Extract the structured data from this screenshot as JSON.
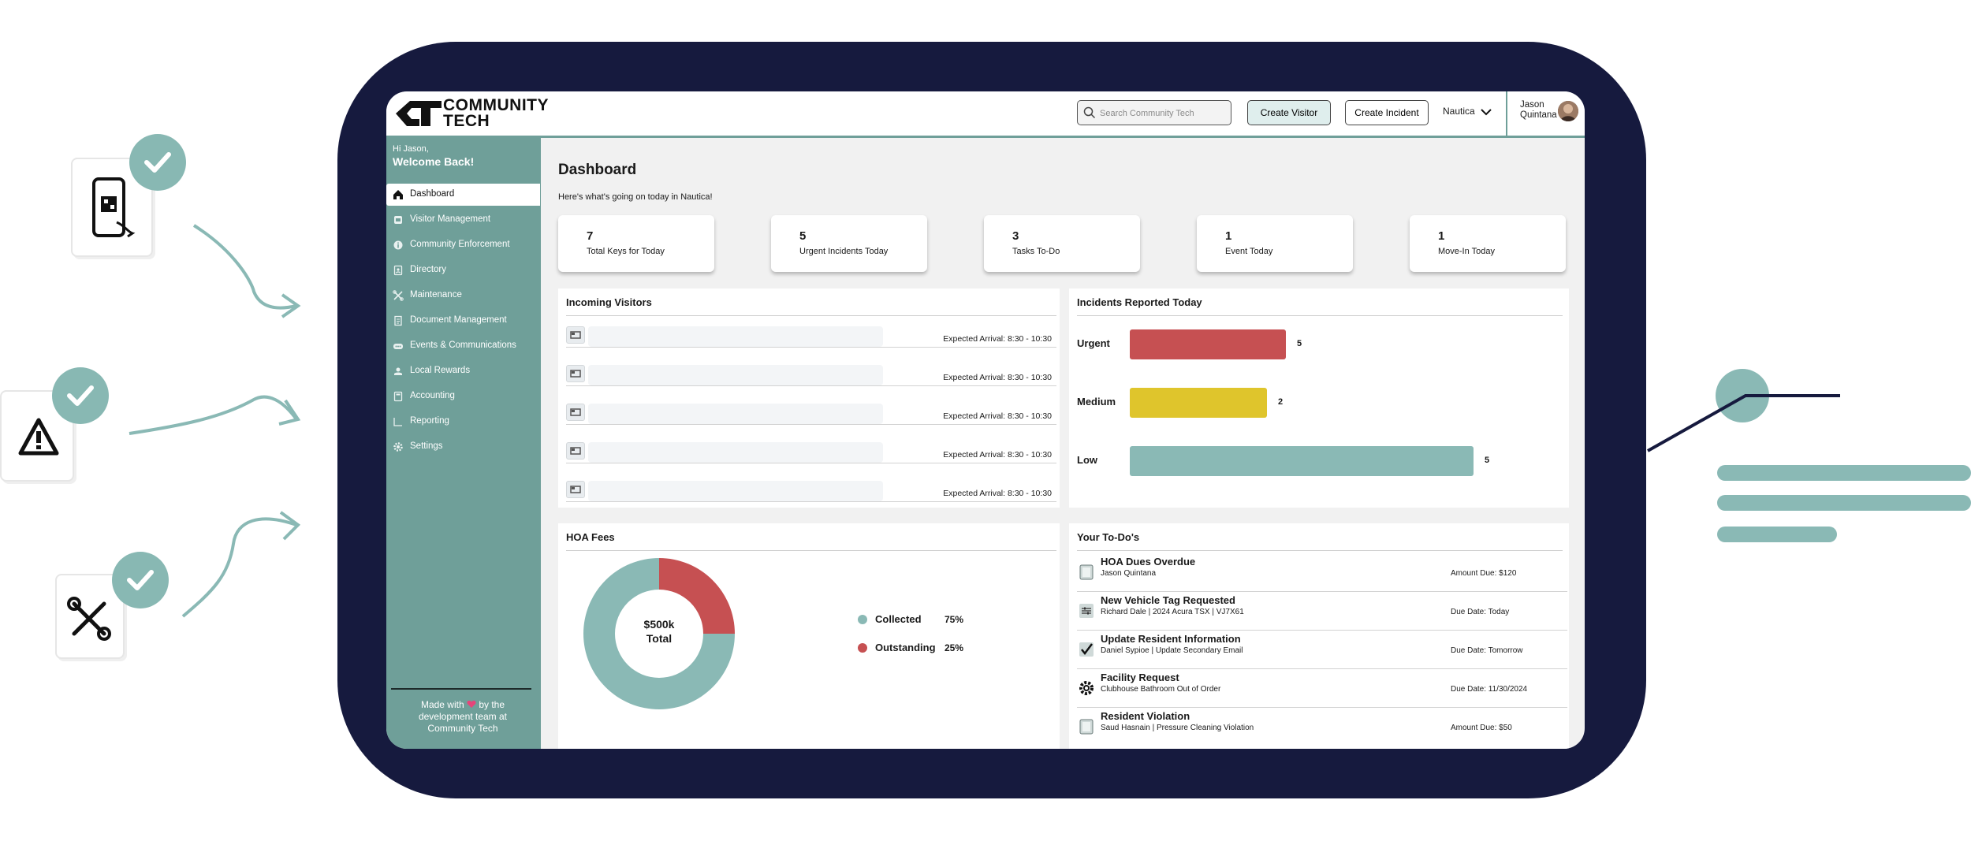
{
  "brand": {
    "logo_line1": "COMMUNITY",
    "logo_line2": "TECH"
  },
  "header": {
    "search_placeholder": "Search Community Tech",
    "create_visitor": "Create Visitor",
    "create_incident": "Create Incident",
    "community": "Nautica",
    "user_first": "Jason",
    "user_last": "Quintana"
  },
  "sidebar": {
    "greeting": "Hi Jason,",
    "welcome": "Welcome Back!",
    "items": [
      {
        "label": "Dashboard",
        "icon": "home-icon"
      },
      {
        "label": "Visitor Management",
        "icon": "visitor-icon"
      },
      {
        "label": "Community Enforcement",
        "icon": "info-icon"
      },
      {
        "label": "Directory",
        "icon": "directory-icon"
      },
      {
        "label": "Maintenance",
        "icon": "tools-icon"
      },
      {
        "label": "Document Management",
        "icon": "document-icon"
      },
      {
        "label": "Events & Communications",
        "icon": "events-icon"
      },
      {
        "label": "Local Rewards",
        "icon": "rewards-icon"
      },
      {
        "label": "Accounting",
        "icon": "accounting-icon"
      },
      {
        "label": "Reporting",
        "icon": "reporting-icon"
      },
      {
        "label": "Settings",
        "icon": "gear-icon"
      }
    ],
    "footer_pre": "Made with",
    "footer_post": "by the development team at Community Tech"
  },
  "main": {
    "title": "Dashboard",
    "subtitle": "Here's what's going on today in Nautica!",
    "stats": [
      {
        "value": "7",
        "label": "Total Keys for Today"
      },
      {
        "value": "5",
        "label": "Urgent Incidents Today"
      },
      {
        "value": "3",
        "label": "Tasks To-Do"
      },
      {
        "value": "1",
        "label": "Event Today"
      },
      {
        "value": "1",
        "label": "Move-In Today"
      }
    ]
  },
  "visitors": {
    "title": "Incoming Visitors",
    "rows": [
      {
        "time": "Expected Arrival: 8:30 - 10:30"
      },
      {
        "time": "Expected Arrival: 8:30 - 10:30"
      },
      {
        "time": "Expected Arrival: 8:30 - 10:30"
      },
      {
        "time": "Expected Arrival: 8:30 - 10:30"
      },
      {
        "time": "Expected Arrival: 8:30 - 10:30"
      }
    ]
  },
  "incidents": {
    "title": "Incidents Reported Today",
    "rows": [
      {
        "label": "Urgent",
        "value": 5,
        "display": "5",
        "color": "#c65052"
      },
      {
        "label": "Medium",
        "value": 2,
        "display": "2",
        "color": "#dfc52c"
      },
      {
        "label": "Low",
        "value": 5,
        "display": "5",
        "color": "#8ab9b5"
      }
    ]
  },
  "hoa": {
    "title": "HOA Fees",
    "center_value": "$500k",
    "center_label": "Total",
    "segments": [
      {
        "label": "Collected",
        "pct": "75%",
        "value": 75,
        "color": "#8ab9b5"
      },
      {
        "label": "Outstanding",
        "pct": "25%",
        "value": 25,
        "color": "#c65052"
      }
    ]
  },
  "todos": {
    "title": "Your To-Do's",
    "rows": [
      {
        "title": "HOA Dues Overdue",
        "sub": "Jason Quintana",
        "right": "Amount Due: $120",
        "icon": "invoice-icon"
      },
      {
        "title": "New Vehicle Tag Requested",
        "sub": "Richard Dale | 2024 Acura TSX | VJ7X61",
        "right": "Due Date: Today",
        "icon": "vehicle-tag-icon"
      },
      {
        "title": "Update Resident Information",
        "sub": "Daniel Sypioe | Update Secondary Email",
        "right": "Due Date: Tomorrow",
        "icon": "checkbox-icon"
      },
      {
        "title": "Facility Request",
        "sub": "Clubhouse Bathroom Out of Order",
        "right": "Due Date: 11/30/2024",
        "icon": "gear-icon"
      },
      {
        "title": "Resident Violation",
        "sub": "Saud Hasnain | Pressure Cleaning Violation",
        "right": "Amount Due: $50",
        "icon": "invoice-icon"
      }
    ]
  },
  "colors": {
    "teal": "#6f9f99",
    "teal_light": "#8ab9b5",
    "navy": "#161a3e",
    "red": "#c65052",
    "yellow": "#dfc52c"
  }
}
